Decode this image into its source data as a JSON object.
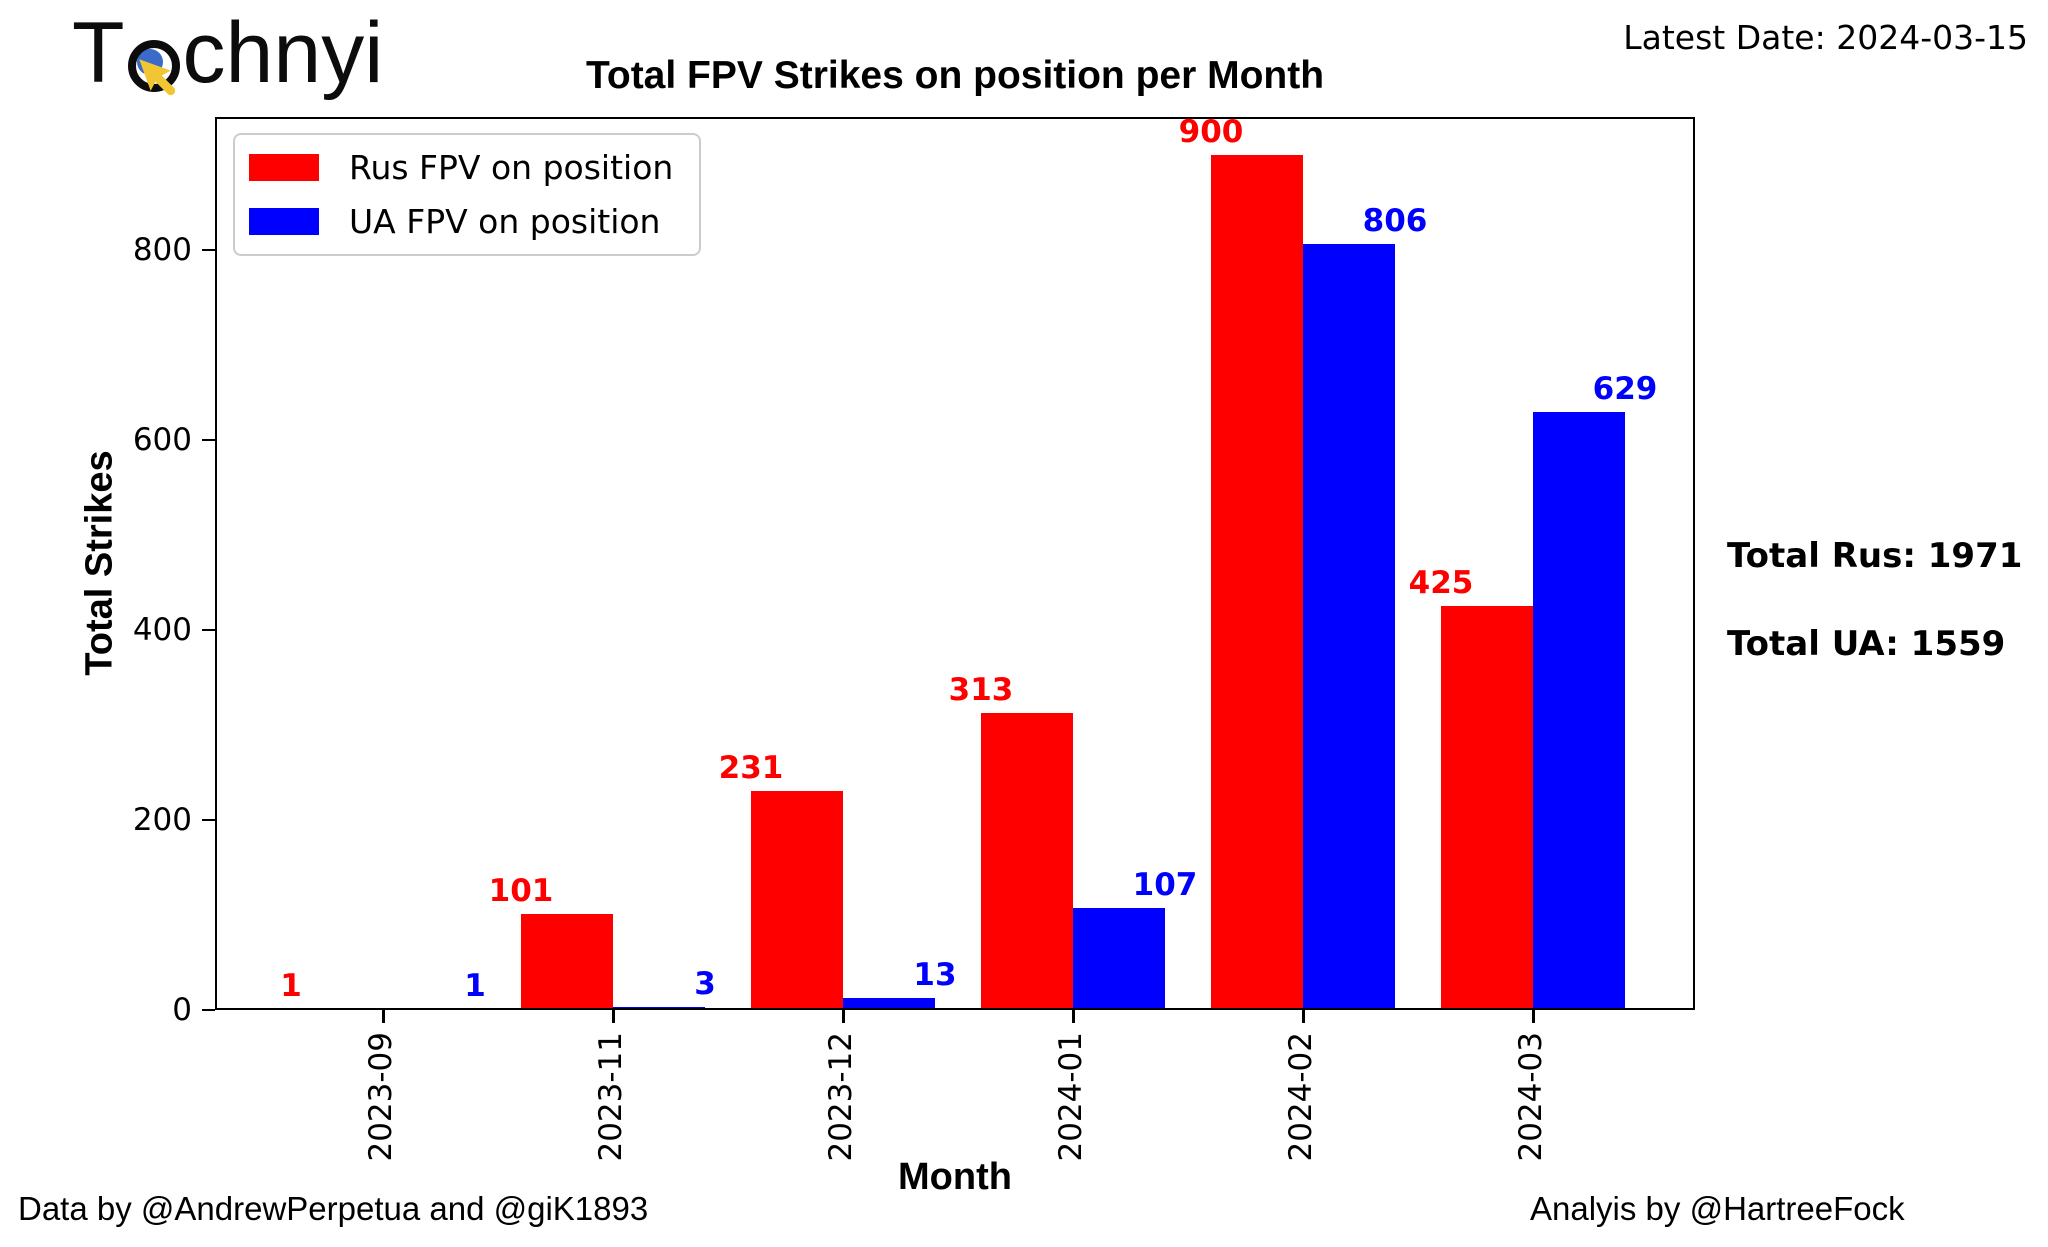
{
  "logo": {
    "text_prefix": "T",
    "text_suffix": "chnyi"
  },
  "header": {
    "latest_date": "Latest Date: 2024-03-15"
  },
  "chart_data": {
    "type": "bar",
    "title": "Total FPV Strikes on position per Month",
    "xlabel": "Month",
    "ylabel": "Total Strikes",
    "categories": [
      "2023-09",
      "2023-11",
      "2023-12",
      "2024-01",
      "2024-02",
      "2024-03"
    ],
    "series": [
      {
        "name": "Rus FPV on position",
        "color": "#ff0000",
        "values": [
          1,
          101,
          231,
          313,
          900,
          425
        ]
      },
      {
        "name": "UA FPV on position",
        "color": "#0000ff",
        "values": [
          1,
          3,
          13,
          107,
          806,
          629
        ]
      }
    ],
    "yticks": [
      0,
      200,
      400,
      600,
      800
    ],
    "ylim": [
      0,
      940
    ],
    "grid": false,
    "legend_position": "upper-left",
    "bar_value_labels": true
  },
  "sidebar_totals": {
    "total_rus": "Total Rus: 1971",
    "total_ua": "Total UA: 1559"
  },
  "footer": {
    "credit_left": "Data by @AndrewPerpetua and @giK1893",
    "credit_right": "Analyis by @HartreeFock"
  }
}
